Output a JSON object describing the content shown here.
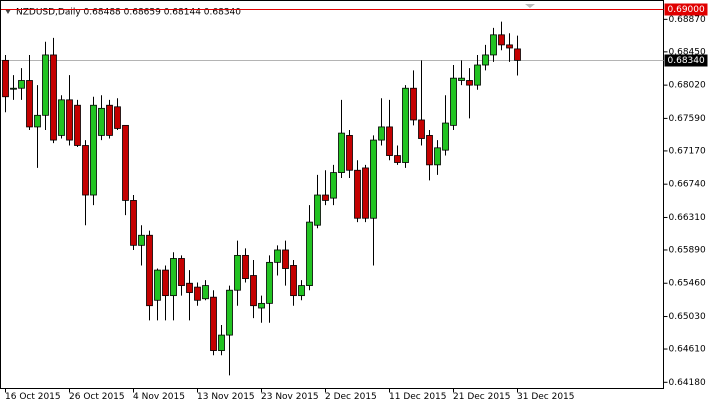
{
  "chart_data": {
    "type": "candlestick",
    "title": "NZDUSD,Daily 0.68488 0.68659 0.68144 0.68340",
    "categories": [
      "16 Oct 2015",
      null,
      null,
      null,
      null,
      null,
      null,
      null,
      "26 Oct 2015",
      null,
      null,
      null,
      null,
      null,
      null,
      null,
      "4 Nov 2015",
      null,
      null,
      null,
      null,
      null,
      null,
      null,
      "13 Nov 2015",
      null,
      null,
      null,
      null,
      null,
      null,
      null,
      "23 Nov 2015",
      null,
      null,
      null,
      null,
      null,
      null,
      null,
      "2 Dec 2015",
      null,
      null,
      null,
      null,
      null,
      null,
      null,
      "11 Dec 2015",
      null,
      null,
      null,
      null,
      null,
      null,
      null,
      "21 Dec 2015",
      null,
      null,
      null,
      null,
      null,
      null,
      null,
      "31 Dec 2015"
    ],
    "open": [
      0.6834,
      0.6798,
      0.6798,
      0.6808,
      0.6748,
      0.6763,
      0.6841,
      0.6737,
      0.6783,
      0.6776,
      0.6724,
      0.666,
      0.6737,
      0.6776,
      0.6774,
      0.675,
      0.6653,
      0.6595,
      0.6608,
      0.6524,
      0.6563,
      0.653,
      0.6578,
      0.6546,
      0.6541,
      0.6526,
      0.6528,
      0.6459,
      0.6479,
      0.6537,
      0.6582,
      0.6556,
      0.6514,
      0.652,
      0.6573,
      0.6589,
      0.6569,
      0.653,
      0.6543,
      0.6621,
      0.666,
      0.6656,
      0.6689,
      0.6737,
      0.6692,
      0.6695,
      0.663,
      0.6731,
      0.6748,
      0.6711,
      0.6702,
      0.6798,
      0.6757,
      0.6737,
      0.6699,
      0.6718,
      0.675,
      0.6808,
      0.6808,
      0.6802,
      0.6828,
      0.6841,
      0.6867,
      0.6854,
      0.68488
    ],
    "high": [
      0.6841,
      0.6815,
      0.6824,
      0.6841,
      0.6802,
      0.6858,
      0.6863,
      0.6789,
      0.6815,
      0.6783,
      0.6731,
      0.6787,
      0.6789,
      0.6783,
      0.6785,
      0.675,
      0.666,
      0.6621,
      0.6614,
      0.6565,
      0.6569,
      0.6586,
      0.6582,
      0.6563,
      0.6547,
      0.655,
      0.6537,
      0.6492,
      0.6543,
      0.6601,
      0.6591,
      0.6576,
      0.653,
      0.6582,
      0.6595,
      0.6601,
      0.6576,
      0.655,
      0.6647,
      0.6686,
      0.6692,
      0.6699,
      0.6783,
      0.6744,
      0.6705,
      0.6699,
      0.6737,
      0.6785,
      0.6783,
      0.6724,
      0.6802,
      0.6821,
      0.6834,
      0.6744,
      0.6731,
      0.6789,
      0.6828,
      0.6834,
      0.6824,
      0.6841,
      0.6854,
      0.6876,
      0.6884,
      0.6869,
      0.68659
    ],
    "low": [
      0.6767,
      0.6783,
      0.6783,
      0.6744,
      0.6695,
      0.6744,
      0.6727,
      0.6733,
      0.6724,
      0.6722,
      0.6621,
      0.6647,
      0.6731,
      0.6733,
      0.6744,
      0.6634,
      0.6589,
      0.6569,
      0.6498,
      0.6498,
      0.6498,
      0.6498,
      0.653,
      0.6498,
      0.6517,
      0.6524,
      0.6453,
      0.6453,
      0.6427,
      0.6517,
      0.6547,
      0.6501,
      0.6495,
      0.6495,
      0.6556,
      0.6543,
      0.6517,
      0.6524,
      0.6537,
      0.6617,
      0.6647,
      0.6647,
      0.6682,
      0.6682,
      0.6625,
      0.6625,
      0.6569,
      0.6724,
      0.6705,
      0.6699,
      0.6695,
      0.675,
      0.6724,
      0.6679,
      0.6686,
      0.6711,
      0.6744,
      0.6802,
      0.6759,
      0.6796,
      0.6821,
      0.6832,
      0.6847,
      0.6832,
      0.68144
    ],
    "close": [
      0.6787,
      0.6798,
      0.6808,
      0.6748,
      0.6763,
      0.6841,
      0.6731,
      0.6783,
      0.6731,
      0.6724,
      0.666,
      0.6776,
      0.6772,
      0.6737,
      0.6746,
      0.6653,
      0.6595,
      0.6608,
      0.6517,
      0.6563,
      0.653,
      0.6578,
      0.6543,
      0.6534,
      0.6524,
      0.6543,
      0.6459,
      0.6479,
      0.6537,
      0.6582,
      0.6552,
      0.6517,
      0.652,
      0.6573,
      0.6589,
      0.6565,
      0.653,
      0.6543,
      0.6625,
      0.666,
      0.6653,
      0.6689,
      0.674,
      0.6692,
      0.663,
      0.663,
      0.6731,
      0.6748,
      0.6711,
      0.6702,
      0.6798,
      0.6757,
      0.6733,
      0.6699,
      0.6721,
      0.6753,
      0.6811,
      0.6811,
      0.6802,
      0.6828,
      0.6841,
      0.6867,
      0.6854,
      0.685,
      0.6834
    ],
    "up_color": "#22c322",
    "down_color": "#c40000",
    "ylim": [
      0.641,
      0.6912
    ],
    "yticks": [
      {
        "value": 0.6887,
        "label": "0.68870"
      },
      {
        "value": 0.6845,
        "label": "0.68450"
      },
      {
        "value": 0.6802,
        "label": "0.68020"
      },
      {
        "value": 0.6759,
        "label": "0.67590"
      },
      {
        "value": 0.6717,
        "label": "0.67170"
      },
      {
        "value": 0.6674,
        "label": "0.66740"
      },
      {
        "value": 0.6631,
        "label": "0.66310"
      },
      {
        "value": 0.6589,
        "label": "0.65890"
      },
      {
        "value": 0.6546,
        "label": "0.65460"
      },
      {
        "value": 0.6503,
        "label": "0.65030"
      },
      {
        "value": 0.6461,
        "label": "0.64610"
      },
      {
        "value": 0.6418,
        "label": "0.64180"
      }
    ],
    "grid": false,
    "price_lines": [
      {
        "value": 0.69,
        "label": "0.69000",
        "color": "#e00000"
      },
      {
        "value": 0.6834,
        "label": "0.68340",
        "color": "#000000"
      }
    ]
  }
}
